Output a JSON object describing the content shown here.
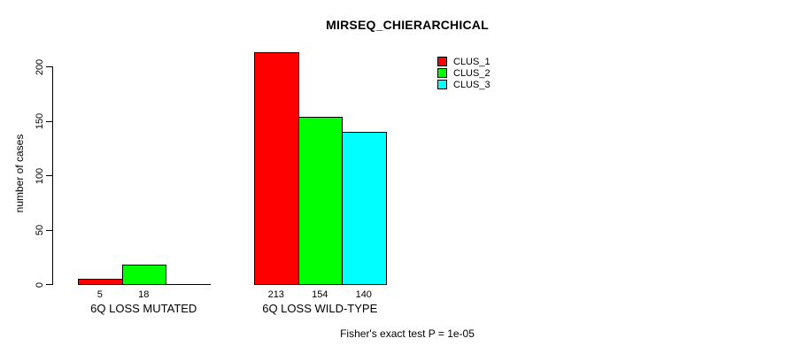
{
  "chart_data": {
    "type": "bar",
    "title": "MIRSEQ_CHIERARCHICAL",
    "xlabel": "",
    "ylabel": "number of cases",
    "ylim": [
      0,
      200
    ],
    "yticks": [
      0,
      50,
      100,
      150,
      200
    ],
    "grid": false,
    "legend_position": "top-right",
    "categories": [
      "6Q LOSS MUTATED",
      "6Q LOSS WILD-TYPE"
    ],
    "series": [
      {
        "name": "CLUS_1",
        "color": "#ff0000",
        "values": [
          5,
          213
        ]
      },
      {
        "name": "CLUS_2",
        "color": "#00ff00",
        "values": [
          18,
          154
        ]
      },
      {
        "name": "CLUS_3",
        "color": "#00ffff",
        "values": [
          0,
          140
        ]
      }
    ],
    "bar_value_labels": [
      [
        "5",
        "18",
        ""
      ],
      [
        "213",
        "154",
        "140"
      ]
    ],
    "annotation": "Fisher's exact test P = 1e-05"
  },
  "legend": {
    "entries": [
      {
        "label": "CLUS_1",
        "color": "#ff0000"
      },
      {
        "label": "CLUS_2",
        "color": "#00ff00"
      },
      {
        "label": "CLUS_3",
        "color": "#00ffff"
      }
    ]
  },
  "colors": {
    "axis": "#000000",
    "background": "#ffffff",
    "text": "#000000"
  }
}
